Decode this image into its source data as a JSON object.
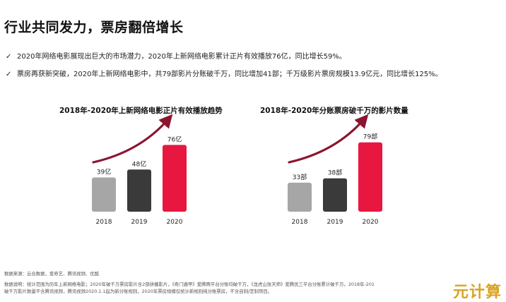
{
  "page": {
    "title": "行业共同发力，票房翻倍增长",
    "bullets": [
      {
        "icon": "check-icon",
        "text": "2020年网络电影展现出巨大的市场潜力，2020年上新网络电影累计正片有效播放76亿，同比增长59%。"
      },
      {
        "icon": "check-icon",
        "text": "票房再获新突破，2020年上新网络电影中，共79部影片分账破千万，同比增加41部；千万级影片票房规模13.9亿元，同比增长125%。"
      }
    ],
    "footer": {
      "source": "数据来源：云合数据，爱奇艺、腾讯视频、优酷",
      "note_line1": "数据说明：统计范围为历年上新网络电影；2020年破千万票房影片含2部拼播影片，《奇门遁甲》爱腾两平台分账均破千万，《龙虎山张天师》爱腾优三平台分账累计破千万。2018年-201",
      "note_line2": "破千万影片数量不含腾讯视频，腾讯视频2020.1.1起为新分账规则，2020年票房规模仅统计新规则纯分账票房，不含自制/定制项目。"
    },
    "watermark": "元计算"
  },
  "colors": {
    "gray": "#a6a6a6",
    "dark": "#3a3a3a",
    "red": "#e8173f",
    "arrow": "#8b1530"
  },
  "chart_data": [
    {
      "type": "bar",
      "title": "2018年-2020年上新网络电影正片有效播放趋势",
      "categories": [
        "2018",
        "2019",
        "2020"
      ],
      "values": [
        39,
        48,
        76
      ],
      "data_labels": [
        "39亿",
        "48亿",
        "76亿"
      ],
      "unit": "亿",
      "ylim": [
        0,
        90
      ],
      "grid": false
    },
    {
      "type": "bar",
      "title": "2018年-2020年分账票房破千万的影片数量",
      "categories": [
        "2018",
        "2019",
        "2020"
      ],
      "values": [
        33,
        38,
        79
      ],
      "data_labels": [
        "33部",
        "38部",
        "79部"
      ],
      "unit": "部",
      "ylim": [
        0,
        90
      ],
      "grid": false
    }
  ]
}
